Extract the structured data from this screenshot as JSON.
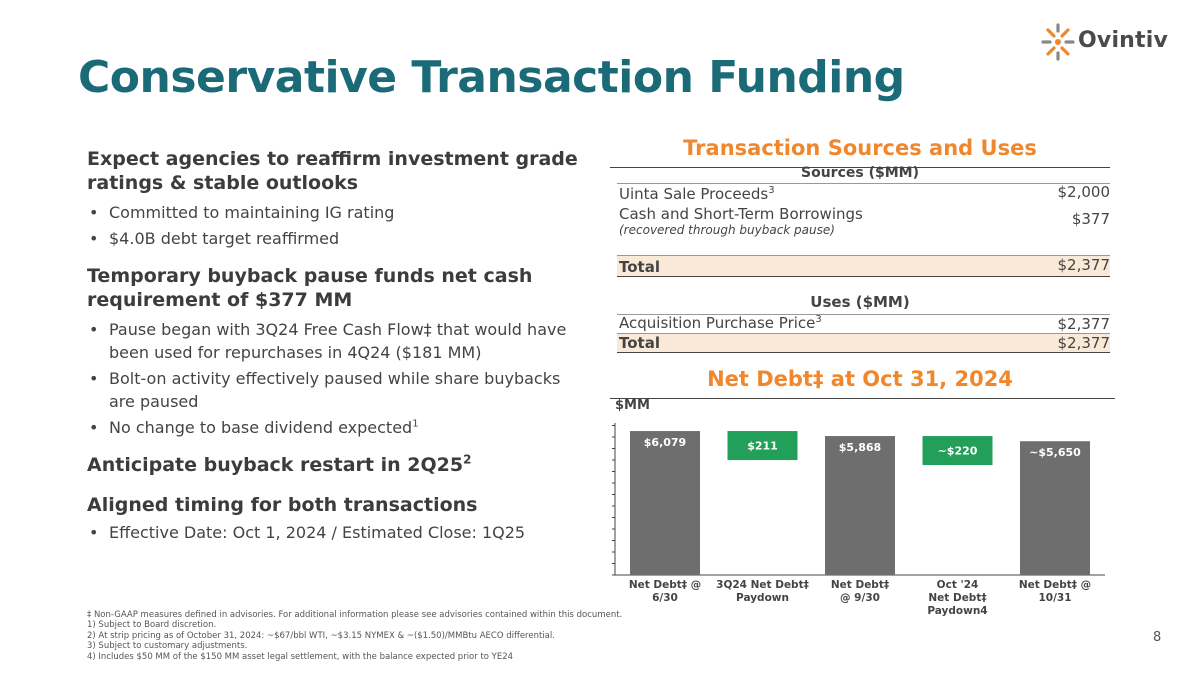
{
  "logo": {
    "name": "Ovintiv",
    "tm": "™"
  },
  "title": "Conservative Transaction Funding",
  "left": {
    "sections": [
      {
        "heading": "Expect agencies to reaffirm investment grade ratings & stable outlooks",
        "bullets": [
          "Committed to maintaining IG rating",
          "$4.0B debt target reaffirmed"
        ]
      },
      {
        "heading": "Temporary buyback pause funds net cash requirement of $377 MM",
        "bullets": [
          "Pause began with 3Q24 Free Cash Flow‡ that would have been used for repurchases in 4Q24 ($181 MM)",
          "Bolt-on activity effectively paused while share buybacks are paused",
          "No change to base dividend expected"
        ]
      },
      {
        "heading": "Anticipate buyback restart in 2Q25",
        "heading_sup": "2",
        "bullets": []
      },
      {
        "heading": "Aligned timing for both transactions",
        "bullets": [
          "Effective Date: Oct 1, 2024 / Estimated Close: 1Q25"
        ]
      }
    ],
    "dividend_sup": "1"
  },
  "table": {
    "title": "Transaction Sources and Uses",
    "sources_header": "Sources ($MM)",
    "sources": [
      {
        "label": "Uinta Sale Proceeds",
        "sup": "3",
        "value": "$2,000"
      },
      {
        "label": "Cash and Short-Term Borrowings",
        "note": "(recovered through buyback pause)",
        "value": "$377"
      }
    ],
    "sources_total": {
      "label": "Total",
      "value": "$2,377"
    },
    "uses_header": "Uses ($MM)",
    "uses": [
      {
        "label": "Acquisition Purchase Price",
        "sup": "3",
        "value": "$2,377"
      }
    ],
    "uses_total": {
      "label": "Total",
      "value": "$2,377"
    }
  },
  "chart_data": {
    "type": "bar",
    "title": "Net Debt‡ at Oct 31, 2024",
    "ylabel": "$MM",
    "categories": [
      "Net Debt‡ @ 6/30",
      "3Q24 Net Debt‡ Paydown",
      "Net Debt‡ @ 9/30",
      "Oct '24 Net Debt‡ Paydown4",
      "Net Debt‡ @ 10/31"
    ],
    "category_lines": [
      [
        "Net Debt‡  @",
        "6/30"
      ],
      [
        "3Q24 Net Debt‡",
        "Paydown"
      ],
      [
        "Net Debt‡",
        "@ 9/30"
      ],
      [
        "Oct '24",
        "Net Debt‡",
        "Paydown4"
      ],
      [
        "Net Debt‡  @",
        "10/31"
      ]
    ],
    "values": [
      6079,
      211,
      5868,
      220,
      5650
    ],
    "kinds": [
      "total",
      "decrease",
      "total",
      "decrease",
      "total"
    ],
    "labels": [
      "$6,079",
      "$211",
      "$5,868",
      "~$220",
      "~$5,650"
    ],
    "colors": {
      "total": "#6e6e6e",
      "decrease": "#22a05a",
      "axis": "#444444"
    }
  },
  "footnotes": [
    "‡ Non-GAAP measures defined in advisories. For additional information please see advisories contained within this document.",
    "1) Subject to Board discretion.",
    "2) At strip pricing as of October 31, 2024: ~$67/bbl WTI, ~$3.15 NYMEX & ~($1.50)/MMBtu AECO differential.",
    "3) Subject to customary adjustments.",
    "4) Includes $50 MM of the $150 MM asset legal settlement, with the balance expected prior to YE24"
  ],
  "page_number": "8",
  "colors": {
    "title": "#1b6a78",
    "accent": "#f0872d",
    "total_row": "#fbe9d7"
  }
}
